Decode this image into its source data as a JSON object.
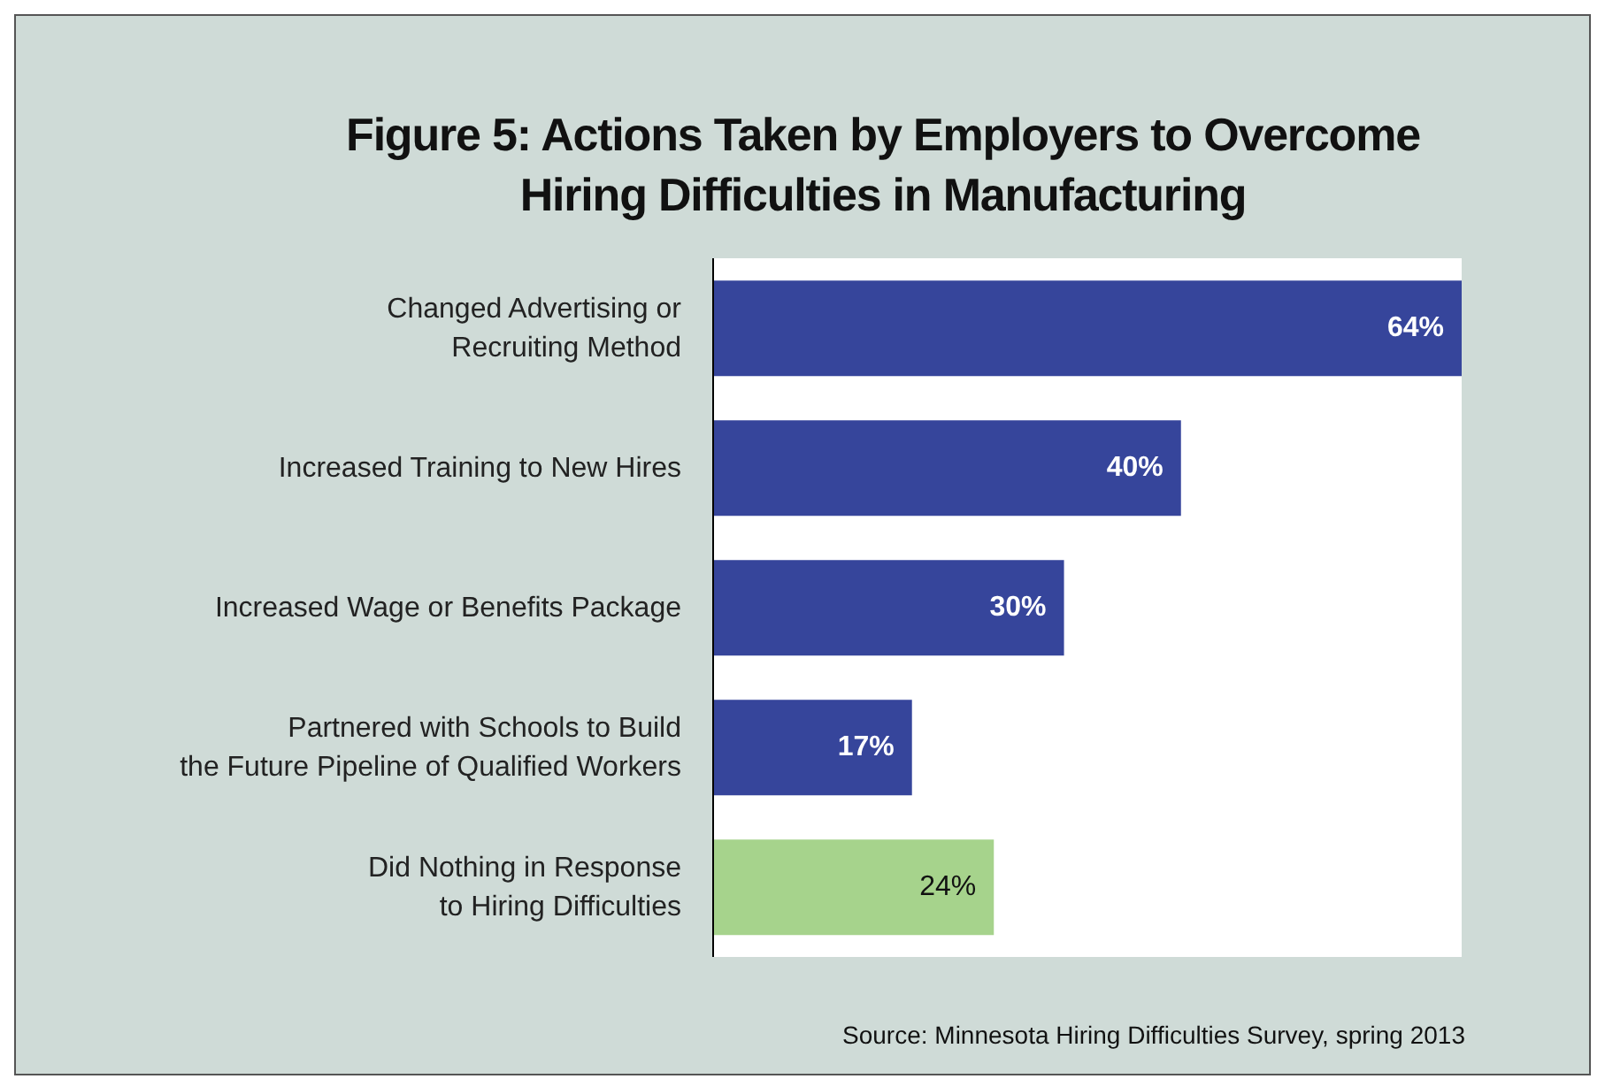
{
  "chart_data": {
    "type": "bar",
    "orientation": "horizontal",
    "title": "Figure 5: Actions Taken by Employers to Overcome Hiring Difficulties in Manufacturing",
    "categories": [
      "Changed Advertising or\nRecruiting Method",
      "Increased Training to New Hires",
      "Increased Wage or Benefits Package",
      "Partnered with Schools to Build\nthe Future Pipeline of Qualified Workers",
      "Did Nothing in Response\nto Hiring Difficulties"
    ],
    "values": [
      64,
      40,
      30,
      17,
      24
    ],
    "colors": [
      "#36459b",
      "#36459b",
      "#36459b",
      "#36459b",
      "#a6d38c"
    ],
    "value_labels": [
      "64%",
      "40%",
      "30%",
      "17%",
      "24%"
    ],
    "xlim": [
      0,
      64
    ],
    "tick_labels": "y",
    "annotations": [
      "Source: Minnesota Hiring Difficulties Survey, spring 2013"
    ]
  }
}
